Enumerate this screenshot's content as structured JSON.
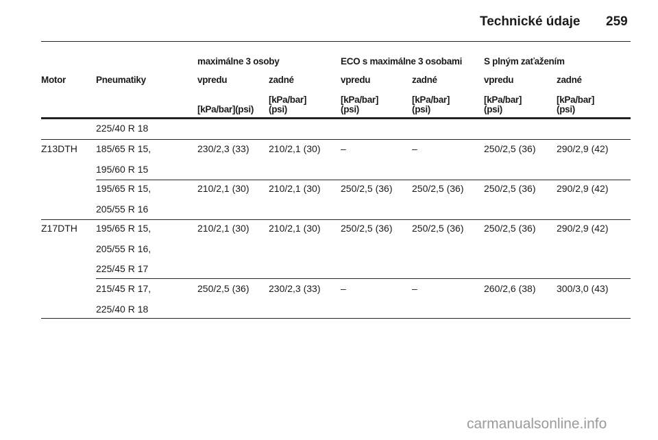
{
  "header": {
    "section_title": "Technické údaje",
    "page_number": "259"
  },
  "table": {
    "group_headers": [
      "maximálne 3 osoby",
      "ECO s maximálne 3 osobami",
      "S plným zaťažením"
    ],
    "columns": [
      "Motor",
      "Pneumatiky",
      "vpredu",
      "zadné",
      "vpredu",
      "zadné",
      "vpredu",
      "zadné"
    ],
    "units": [
      "[kPa/bar](psi)",
      "[kPa/bar]\n(psi)",
      "[kPa/bar]\n(psi)",
      "[kPa/bar]\n(psi)",
      "[kPa/bar]\n(psi)",
      "[kPa/bar]\n(psi)"
    ],
    "rows": [
      {
        "motor": "",
        "tyres": [
          "225/40 R 18"
        ],
        "values": [
          "",
          "",
          "",
          "",
          "",
          ""
        ]
      },
      {
        "motor": "Z13DTH",
        "tyres": [
          "185/65 R 15,",
          "195/60 R 15"
        ],
        "values": [
          "230/2,3 (33)",
          "210/2,1 (30)",
          "–",
          "–",
          "250/2,5 (36)",
          "290/2,9 (42)"
        ]
      },
      {
        "motor": "",
        "tyres": [
          "195/65 R 15,",
          "205/55 R 16"
        ],
        "values": [
          "210/2,1 (30)",
          "210/2,1 (30)",
          "250/2,5 (36)",
          "250/2,5 (36)",
          "250/2,5 (36)",
          "290/2,9 (42)"
        ]
      },
      {
        "motor": "Z17DTH",
        "tyres": [
          "195/65 R 15,",
          "205/55 R 16,",
          "225/45 R 17"
        ],
        "values": [
          "210/2,1 (30)",
          "210/2,1 (30)",
          "250/2,5 (36)",
          "250/2,5 (36)",
          "250/2,5 (36)",
          "290/2,9 (42)"
        ]
      },
      {
        "motor": "",
        "tyres": [
          "215/45 R 17,",
          "225/40 R 18"
        ],
        "values": [
          "250/2,5 (36)",
          "230/2,3 (33)",
          "–",
          "–",
          "260/2,6 (38)",
          "300/3,0 (43)"
        ]
      }
    ]
  },
  "watermark": "carmanualsonline.info"
}
